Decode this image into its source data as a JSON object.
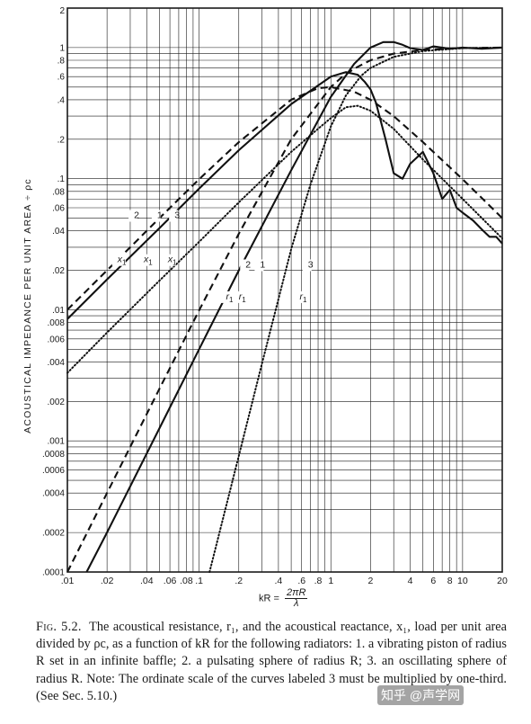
{
  "figure": {
    "ylabel": "ACOUSTICAL IMPEDANCE PER UNIT AREA ÷ ρc",
    "xlabel": {
      "lhs": "kR =",
      "numerator": "2πR",
      "denominator": "λ"
    },
    "caption_label": "Fig. 5.2.",
    "caption_text": "The acoustical resistance, r₁, and the acoustical reactance, x₁, load per unit area divided by ρc, as a function of kR for the following radiators: 1. a vibrating piston of radius R set in an infinite baffle; 2. a pulsating sphere of radius R; 3. an oscillating sphere of radius R. Note: The ordinate scale of the curves labeled 3 must be multiplied by one-third. (See Sec. 5.10.)",
    "watermark": "知乎 @声学网"
  },
  "chart_data": {
    "type": "line",
    "xscale": "log",
    "yscale": "log",
    "xlim": [
      0.01,
      20
    ],
    "ylim": [
      0.0001,
      2
    ],
    "grid": true,
    "x_ticks": [
      ".01",
      ".02",
      ".04",
      ".06",
      ".08",
      ".1",
      ".2",
      ".4",
      ".6",
      ".8",
      "1",
      "2",
      "4",
      "6",
      "8",
      "10",
      "20"
    ],
    "y_ticks": [
      ".0001",
      ".0002",
      ".0004",
      ".0006",
      ".0008",
      ".001",
      ".002",
      ".004",
      ".006",
      ".008",
      ".01",
      ".02",
      ".04",
      ".06",
      ".08",
      ".1",
      ".2",
      ".4",
      ".6",
      ".8",
      "1",
      "2"
    ],
    "series": [
      {
        "name": "r1",
        "curve": "1",
        "style": "solid",
        "x": [
          0.014,
          0.02,
          0.05,
          0.1,
          0.2,
          0.5,
          1,
          1.5,
          2,
          2.5,
          3,
          3.5,
          4,
          5,
          6,
          8,
          10,
          14,
          20
        ],
        "y": [
          0.0001,
          0.0002,
          0.00125,
          0.005,
          0.02,
          0.116,
          0.42,
          0.75,
          1.0,
          1.1,
          1.1,
          1.05,
          0.99,
          0.96,
          1.02,
          0.98,
          1.0,
          0.98,
          1.0
        ]
      },
      {
        "name": "x1",
        "curve": "1",
        "style": "solid",
        "x": [
          0.01,
          0.02,
          0.05,
          0.1,
          0.2,
          0.5,
          1,
          1.3,
          1.6,
          1.8,
          2,
          2.2,
          2.6,
          3,
          3.5,
          4,
          5,
          6,
          7,
          8,
          9,
          10,
          12,
          14,
          16,
          18,
          20
        ],
        "y": [
          0.0085,
          0.017,
          0.042,
          0.084,
          0.165,
          0.37,
          0.6,
          0.65,
          0.62,
          0.55,
          0.48,
          0.38,
          0.2,
          0.11,
          0.1,
          0.13,
          0.16,
          0.11,
          0.07,
          0.082,
          0.06,
          0.055,
          0.048,
          0.041,
          0.036,
          0.036,
          0.032
        ]
      },
      {
        "name": "r1",
        "curve": "2",
        "style": "dashed",
        "x": [
          0.01,
          0.02,
          0.05,
          0.1,
          0.2,
          0.5,
          1,
          1.2,
          1.5,
          2,
          3,
          5,
          10,
          20
        ],
        "y": [
          0.0001,
          0.0004,
          0.0025,
          0.0099,
          0.038,
          0.2,
          0.5,
          0.59,
          0.69,
          0.8,
          0.9,
          0.96,
          0.99,
          1.0
        ]
      },
      {
        "name": "x1",
        "curve": "2",
        "style": "dashed",
        "x": [
          0.01,
          0.02,
          0.05,
          0.1,
          0.2,
          0.5,
          0.8,
          1,
          1.5,
          2,
          3,
          5,
          10,
          20
        ],
        "y": [
          0.01,
          0.02,
          0.05,
          0.099,
          0.19,
          0.4,
          0.49,
          0.5,
          0.46,
          0.4,
          0.3,
          0.19,
          0.099,
          0.05
        ]
      },
      {
        "name": "r1",
        "curve": "3",
        "style": "dotted",
        "x": [
          0.12,
          0.2,
          0.3,
          0.5,
          0.7,
          1,
          1.3,
          1.7,
          2,
          3,
          5,
          10,
          20
        ],
        "y": [
          0.0001,
          0.00077,
          0.0039,
          0.029,
          0.09,
          0.25,
          0.43,
          0.61,
          0.7,
          0.85,
          0.94,
          0.99,
          1.0
        ]
      },
      {
        "name": "x1",
        "curve": "3",
        "style": "dotted",
        "x": [
          0.01,
          0.02,
          0.05,
          0.1,
          0.2,
          0.5,
          0.8,
          1,
          1.3,
          1.6,
          2,
          3,
          5,
          10,
          20
        ],
        "y": [
          0.0033,
          0.0067,
          0.0167,
          0.033,
          0.066,
          0.16,
          0.24,
          0.29,
          0.35,
          0.36,
          0.33,
          0.24,
          0.14,
          0.07,
          0.035
        ]
      }
    ],
    "annotations": [
      {
        "text": "2",
        "x": 0.032,
        "y": 0.05
      },
      {
        "text": "1",
        "x": 0.048,
        "y": 0.05
      },
      {
        "text": "3",
        "x": 0.065,
        "y": 0.05
      },
      {
        "text": "x1",
        "x": 0.024,
        "y": 0.023
      },
      {
        "text": "x1",
        "x": 0.038,
        "y": 0.023
      },
      {
        "text": "x1",
        "x": 0.058,
        "y": 0.023
      },
      {
        "text": "2",
        "x": 0.225,
        "y": 0.021
      },
      {
        "text": "1",
        "x": 0.29,
        "y": 0.021
      },
      {
        "text": "3",
        "x": 0.67,
        "y": 0.021
      },
      {
        "text": "r1",
        "x": 0.16,
        "y": 0.012
      },
      {
        "text": "r1",
        "x": 0.2,
        "y": 0.012
      },
      {
        "text": "r1",
        "x": 0.58,
        "y": 0.012
      }
    ]
  }
}
